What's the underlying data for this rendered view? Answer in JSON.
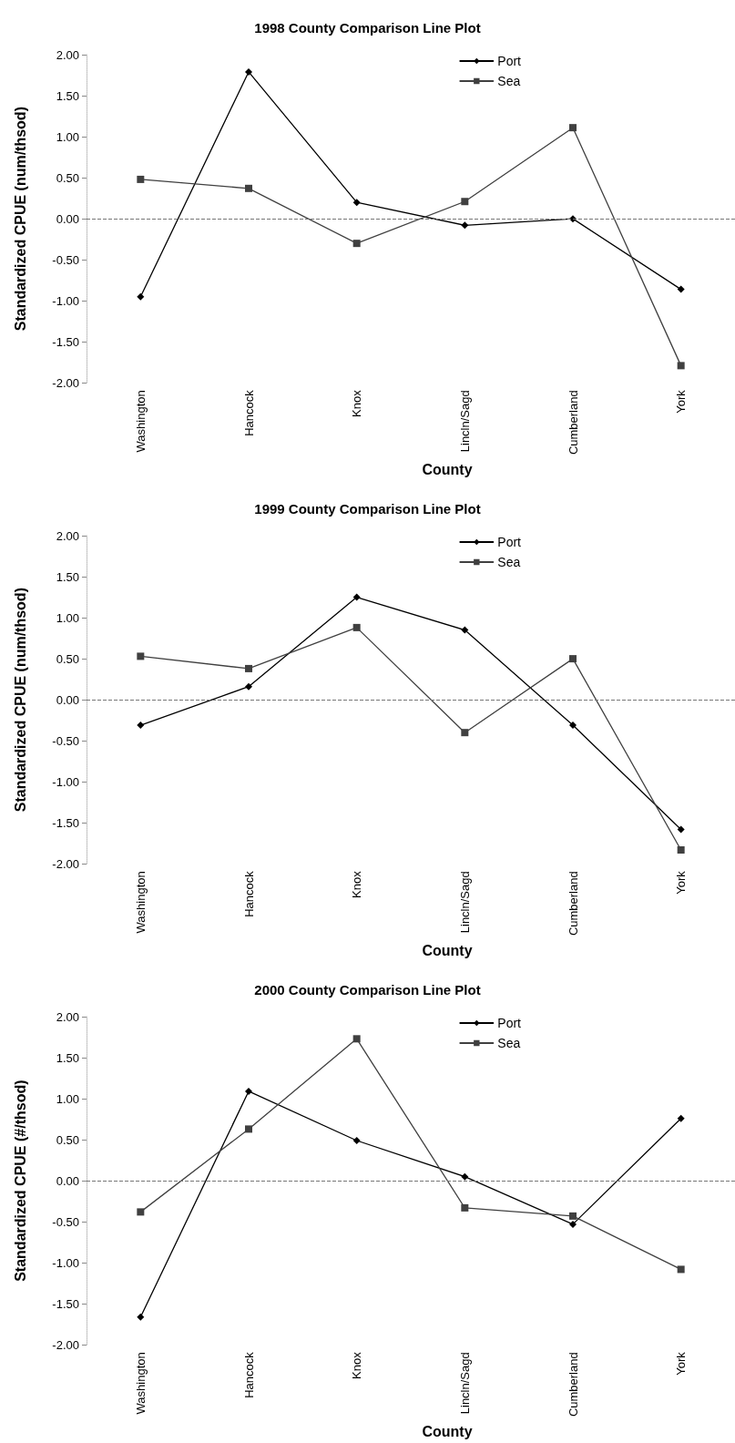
{
  "chart_data": [
    {
      "type": "line",
      "title": "1998 County Comparison Line Plot",
      "xlabel": "County",
      "ylabel": "Standardized CPUE (num/thsod)",
      "categories": [
        "Washington",
        "Hancock",
        "Knox",
        "Lincln/Sagd",
        "Cumberland",
        "York"
      ],
      "series": [
        {
          "name": "Port",
          "color": "#000000",
          "marker": "diamond",
          "values": [
            -0.95,
            1.79,
            0.2,
            -0.08,
            0.0,
            -0.86
          ]
        },
        {
          "name": "Sea",
          "color": "#404040",
          "marker": "square",
          "values": [
            0.48,
            0.37,
            -0.3,
            0.21,
            1.11,
            -1.79
          ]
        }
      ],
      "ylim": [
        -2,
        2
      ],
      "yticks": [
        {
          "value": -2,
          "label": "-2.00"
        },
        {
          "value": -1.5,
          "label": "-1.50"
        },
        {
          "value": -1,
          "label": "-1.00"
        },
        {
          "value": -0.5,
          "label": "-0.50"
        },
        {
          "value": 0,
          "label": "0.00"
        },
        {
          "value": 0.5,
          "label": "0.50"
        },
        {
          "value": 1,
          "label": "1.00"
        },
        {
          "value": 1.5,
          "label": "1.50"
        },
        {
          "value": 2,
          "label": "2.00"
        }
      ],
      "grid": false,
      "legend": "top right",
      "ref_lines": [
        {
          "axis": "y",
          "value": 0,
          "color": "#777777",
          "line_style": "dashed"
        }
      ]
    },
    {
      "type": "line",
      "title": "1999 County Comparison Line Plot",
      "xlabel": "County",
      "ylabel": "Standardized CPUE (num/thsod)",
      "categories": [
        "Washington",
        "Hancock",
        "Knox",
        "Lincln/Sagd",
        "Cumberland",
        "York"
      ],
      "series": [
        {
          "name": "Port",
          "color": "#000000",
          "marker": "diamond",
          "values": [
            -0.31,
            0.16,
            1.25,
            0.85,
            -0.31,
            -1.58
          ]
        },
        {
          "name": "Sea",
          "color": "#404040",
          "marker": "square",
          "values": [
            0.53,
            0.38,
            0.88,
            -0.4,
            0.5,
            -1.83
          ]
        }
      ],
      "ylim": [
        -2,
        2
      ],
      "yticks": [
        {
          "value": -2,
          "label": "-2.00"
        },
        {
          "value": -1.5,
          "label": "-1.50"
        },
        {
          "value": -1,
          "label": "-1.00"
        },
        {
          "value": -0.5,
          "label": "-0.50"
        },
        {
          "value": 0,
          "label": "0.00"
        },
        {
          "value": 0.5,
          "label": "0.50"
        },
        {
          "value": 1,
          "label": "1.00"
        },
        {
          "value": 1.5,
          "label": "1.50"
        },
        {
          "value": 2,
          "label": "2.00"
        }
      ],
      "grid": false,
      "legend": "top right",
      "ref_lines": [
        {
          "axis": "y",
          "value": 0,
          "color": "#777777",
          "line_style": "dashed"
        }
      ]
    },
    {
      "type": "line",
      "title": "2000 County Comparison Line Plot",
      "xlabel": "County",
      "ylabel": "Standardized CPUE (#/thsod)",
      "categories": [
        "Washington",
        "Hancock",
        "Knox",
        "Lincln/Sagd",
        "Cumberland",
        "York"
      ],
      "series": [
        {
          "name": "Port",
          "color": "#000000",
          "marker": "diamond",
          "values": [
            -1.66,
            1.09,
            0.49,
            0.05,
            -0.53,
            0.76
          ]
        },
        {
          "name": "Sea",
          "color": "#404040",
          "marker": "square",
          "values": [
            -0.38,
            0.63,
            1.73,
            -0.33,
            -0.43,
            -1.08
          ]
        }
      ],
      "ylim": [
        -2,
        2
      ],
      "yticks": [
        {
          "value": -2,
          "label": "-2.00"
        },
        {
          "value": -1.5,
          "label": "-1.50"
        },
        {
          "value": -1,
          "label": "-1.00"
        },
        {
          "value": -0.5,
          "label": "-0.50"
        },
        {
          "value": 0,
          "label": "0.00"
        },
        {
          "value": 0.5,
          "label": "0.50"
        },
        {
          "value": 1,
          "label": "1.00"
        },
        {
          "value": 1.5,
          "label": "1.50"
        },
        {
          "value": 2,
          "label": "2.00"
        }
      ],
      "grid": false,
      "legend": "top right",
      "ref_lines": [
        {
          "axis": "y",
          "value": 0,
          "color": "#777777",
          "line_style": "dashed"
        }
      ]
    }
  ]
}
